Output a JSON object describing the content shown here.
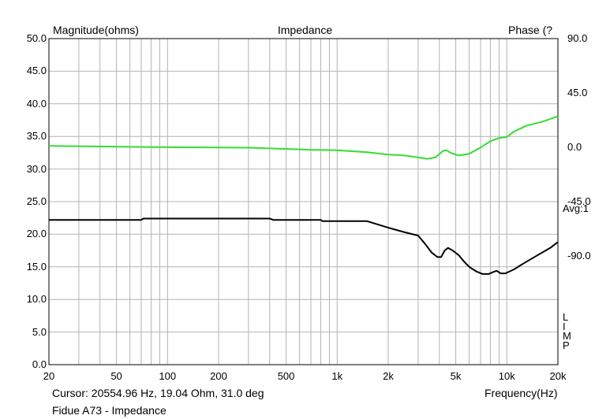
{
  "chart_data": {
    "type": "line",
    "title": "Impedance",
    "ylabel": "Magnitude(ohms)",
    "y2label": "Phase (?",
    "xlabel": "Frequency(Hz)",
    "x_scale": "log",
    "xlim": [
      20,
      20000
    ],
    "ylim": [
      0,
      50
    ],
    "y2lim": [
      -180,
      90
    ],
    "x_ticks": [
      20,
      50,
      100,
      200,
      500,
      1000,
      2000,
      5000,
      10000,
      20000
    ],
    "x_tick_labels": [
      "20",
      "50",
      "100",
      "200",
      "500",
      "1k",
      "2k",
      "5k",
      "10k",
      "20k"
    ],
    "y_ticks": [
      "0.0",
      "5.0",
      "10.0",
      "15.0",
      "20.0",
      "25.0",
      "30.0",
      "35.0",
      "40.0",
      "45.0",
      "50.0"
    ],
    "y2_ticks": [
      "90.0",
      "45.0",
      "0.0",
      "-45.0",
      "-90.0"
    ],
    "grid": true,
    "side_labels": [
      "Avg:1",
      "L",
      "I",
      "M",
      "P"
    ],
    "cursor_text": "Cursor: 20554.96 Hz, 19.04 Ohm, 31.0 deg",
    "caption": "Fidue A73 - Impedance",
    "series": [
      {
        "color": "#000000",
        "axis": "left",
        "points": [
          [
            20,
            22.2
          ],
          [
            70,
            22.2
          ],
          [
            72,
            22.4
          ],
          [
            400,
            22.4
          ],
          [
            420,
            22.2
          ],
          [
            800,
            22.2
          ],
          [
            820,
            22.0
          ],
          [
            1500,
            22.0
          ],
          [
            2000,
            21.0
          ],
          [
            2500,
            20.3
          ],
          [
            3000,
            19.8
          ],
          [
            3300,
            18.5
          ],
          [
            3600,
            17.2
          ],
          [
            3900,
            16.5
          ],
          [
            4100,
            16.5
          ],
          [
            4300,
            17.5
          ],
          [
            4500,
            17.9
          ],
          [
            4800,
            17.5
          ],
          [
            5200,
            16.8
          ],
          [
            5600,
            15.8
          ],
          [
            6000,
            15.0
          ],
          [
            6600,
            14.3
          ],
          [
            7200,
            13.9
          ],
          [
            7800,
            13.9
          ],
          [
            8300,
            14.2
          ],
          [
            8700,
            14.4
          ],
          [
            9200,
            14.0
          ],
          [
            9800,
            14.0
          ],
          [
            11000,
            14.6
          ],
          [
            12500,
            15.5
          ],
          [
            15000,
            16.7
          ],
          [
            18000,
            17.9
          ],
          [
            20000,
            18.8
          ]
        ]
      },
      {
        "color": "#33dd33",
        "axis": "right",
        "points": [
          [
            20,
            1.1
          ],
          [
            80,
            0.2
          ],
          [
            300,
            -0.3
          ],
          [
            700,
            -2.1
          ],
          [
            1000,
            -2.4
          ],
          [
            1500,
            -4.1
          ],
          [
            2000,
            -6.0
          ],
          [
            2500,
            -6.8
          ],
          [
            3000,
            -8.4
          ],
          [
            3400,
            -9.6
          ],
          [
            3800,
            -8.4
          ],
          [
            4200,
            -3.0
          ],
          [
            4400,
            -2.4
          ],
          [
            4700,
            -4.8
          ],
          [
            5200,
            -6.8
          ],
          [
            6000,
            -5.4
          ],
          [
            7000,
            -0.2
          ],
          [
            8000,
            5.0
          ],
          [
            9000,
            7.7
          ],
          [
            10000,
            8.5
          ],
          [
            11000,
            13.0
          ],
          [
            13000,
            17.8
          ],
          [
            16000,
            21.0
          ],
          [
            20000,
            25.6
          ]
        ]
      }
    ]
  }
}
